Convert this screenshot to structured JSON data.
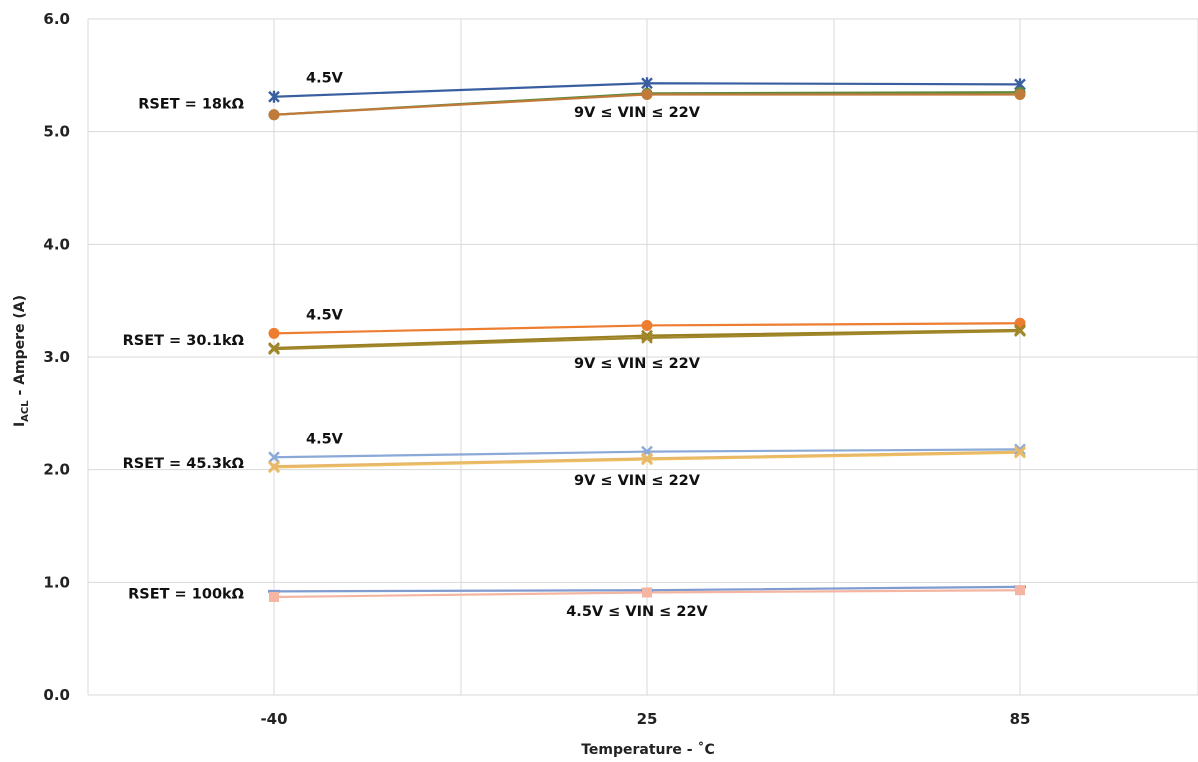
{
  "chart_data": {
    "type": "line",
    "title": "",
    "xlabel": "Temperature - ˚C",
    "ylabel": "IACL - Ampere (A)",
    "ylabel_main": "I",
    "ylabel_sub": "ACL",
    "ylabel_rest": " - Ampere (A)",
    "x": [
      "-40",
      "25",
      "85"
    ],
    "ylim": [
      0,
      6
    ],
    "y_ticks": [
      "0.0",
      "1.0",
      "2.0",
      "3.0",
      "4.0",
      "5.0",
      "6.0"
    ],
    "grid": true,
    "legend": "none",
    "series": [
      {
        "values": [
          5.31,
          5.43,
          5.42
        ],
        "color": "#3a5fa0",
        "marker": "star"
      },
      {
        "values": [
          5.15,
          5.34,
          5.35
        ],
        "color": "#5b8a3c",
        "marker": "circle"
      },
      {
        "values": [
          5.15,
          5.33,
          5.33
        ],
        "color": "#c07a3a",
        "marker": "circle"
      },
      {
        "values": [
          3.21,
          3.28,
          3.3
        ],
        "color": "#ed7d31",
        "marker": "circle"
      },
      {
        "values": [
          3.08,
          3.19,
          3.24
        ],
        "color": "#9a7f22",
        "marker": "x"
      },
      {
        "values": [
          3.07,
          3.17,
          3.23
        ],
        "color": "#a1882a",
        "marker": "x"
      },
      {
        "values": [
          2.11,
          2.16,
          2.18
        ],
        "color": "#8aa9d6",
        "marker": "x"
      },
      {
        "values": [
          2.02,
          2.09,
          2.15
        ],
        "color": "#f0c060",
        "marker": "x"
      },
      {
        "values": [
          2.03,
          2.1,
          2.16
        ],
        "color": "#e8b86a",
        "marker": "x"
      },
      {
        "values": [
          0.92,
          0.93,
          0.96
        ],
        "color": "#7f9bd0",
        "marker": "dash"
      },
      {
        "values": [
          0.87,
          0.91,
          0.93
        ],
        "color": "#f4b6a2",
        "marker": "square"
      }
    ],
    "annotations": [
      {
        "text": "4.5V",
        "x": "-40",
        "y": 5.31,
        "pos": "above-right"
      },
      {
        "text": "RSET = 18kΩ",
        "x": "-40",
        "y": 5.25,
        "pos": "left"
      },
      {
        "text": "9V ≤ VIN ≤ 22V",
        "x": "25",
        "y": 5.15,
        "pos": "below"
      },
      {
        "text": "4.5V",
        "x": "-40",
        "y": 3.21,
        "pos": "above-right"
      },
      {
        "text": "RSET = 30.1kΩ",
        "x": "-40",
        "y": 3.15,
        "pos": "left"
      },
      {
        "text": "9V ≤ VIN ≤ 22V",
        "x": "25",
        "y": 2.92,
        "pos": "below"
      },
      {
        "text": "4.5V",
        "x": "-40",
        "y": 2.11,
        "pos": "above-right"
      },
      {
        "text": "RSET = 45.3kΩ",
        "x": "-40",
        "y": 2.06,
        "pos": "left"
      },
      {
        "text": "9V ≤ VIN ≤ 22V",
        "x": "25",
        "y": 1.88,
        "pos": "below"
      },
      {
        "text": "RSET = 100kΩ",
        "x": "-40",
        "y": 0.9,
        "pos": "left"
      },
      {
        "text": "4.5V ≤ VIN ≤ 22V",
        "x": "25",
        "y": 0.72,
        "pos": "below"
      }
    ]
  }
}
